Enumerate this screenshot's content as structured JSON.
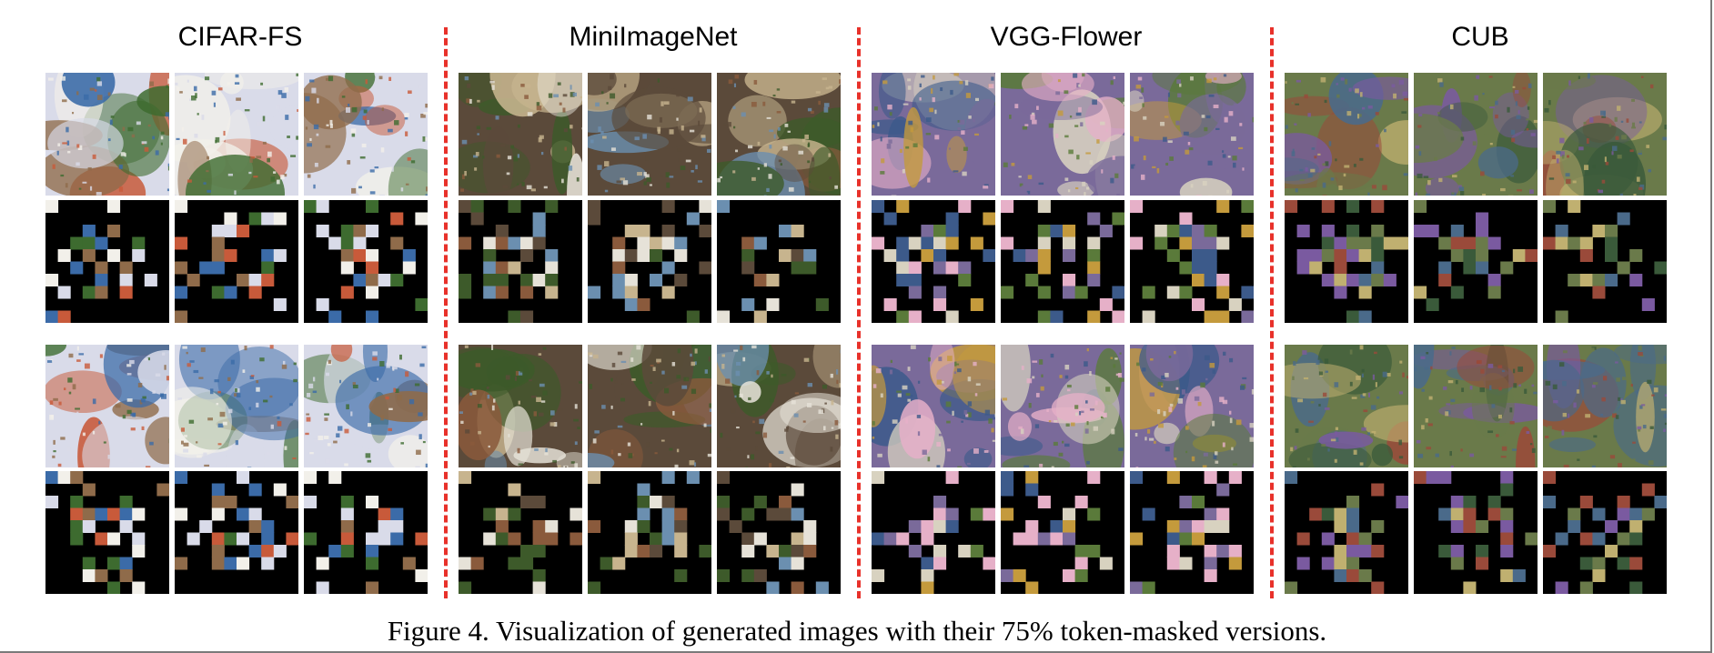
{
  "figure": {
    "caption": "Figure 4. Visualization of generated images with their 75% token-masked versions.",
    "datasets": [
      {
        "title": "CIFAR-FS",
        "palette": [
          "#d9dbe9",
          "#8f6b4a",
          "#3d6b2f",
          "#f2f0ea",
          "#3b6ba8",
          "#c85a3a"
        ]
      },
      {
        "title": "MiniImageNet",
        "palette": [
          "#5b4a3a",
          "#c7b48e",
          "#3d5a2a",
          "#e6e2d8",
          "#8a5a3c",
          "#6b8fb0"
        ]
      },
      {
        "title": "VGG-Flower",
        "palette": [
          "#7a6a9a",
          "#c49a3c",
          "#5a7a3a",
          "#e6b0c8",
          "#3c5a8a",
          "#d8d2c0"
        ]
      },
      {
        "title": "CUB",
        "palette": [
          "#6a7a4a",
          "#9a4a3a",
          "#4a6a8a",
          "#c0b070",
          "#7a5aa0",
          "#3a5a3a"
        ]
      }
    ],
    "row_groups": [
      "generated",
      "token-masked"
    ],
    "mask_ratio": 0.75
  }
}
